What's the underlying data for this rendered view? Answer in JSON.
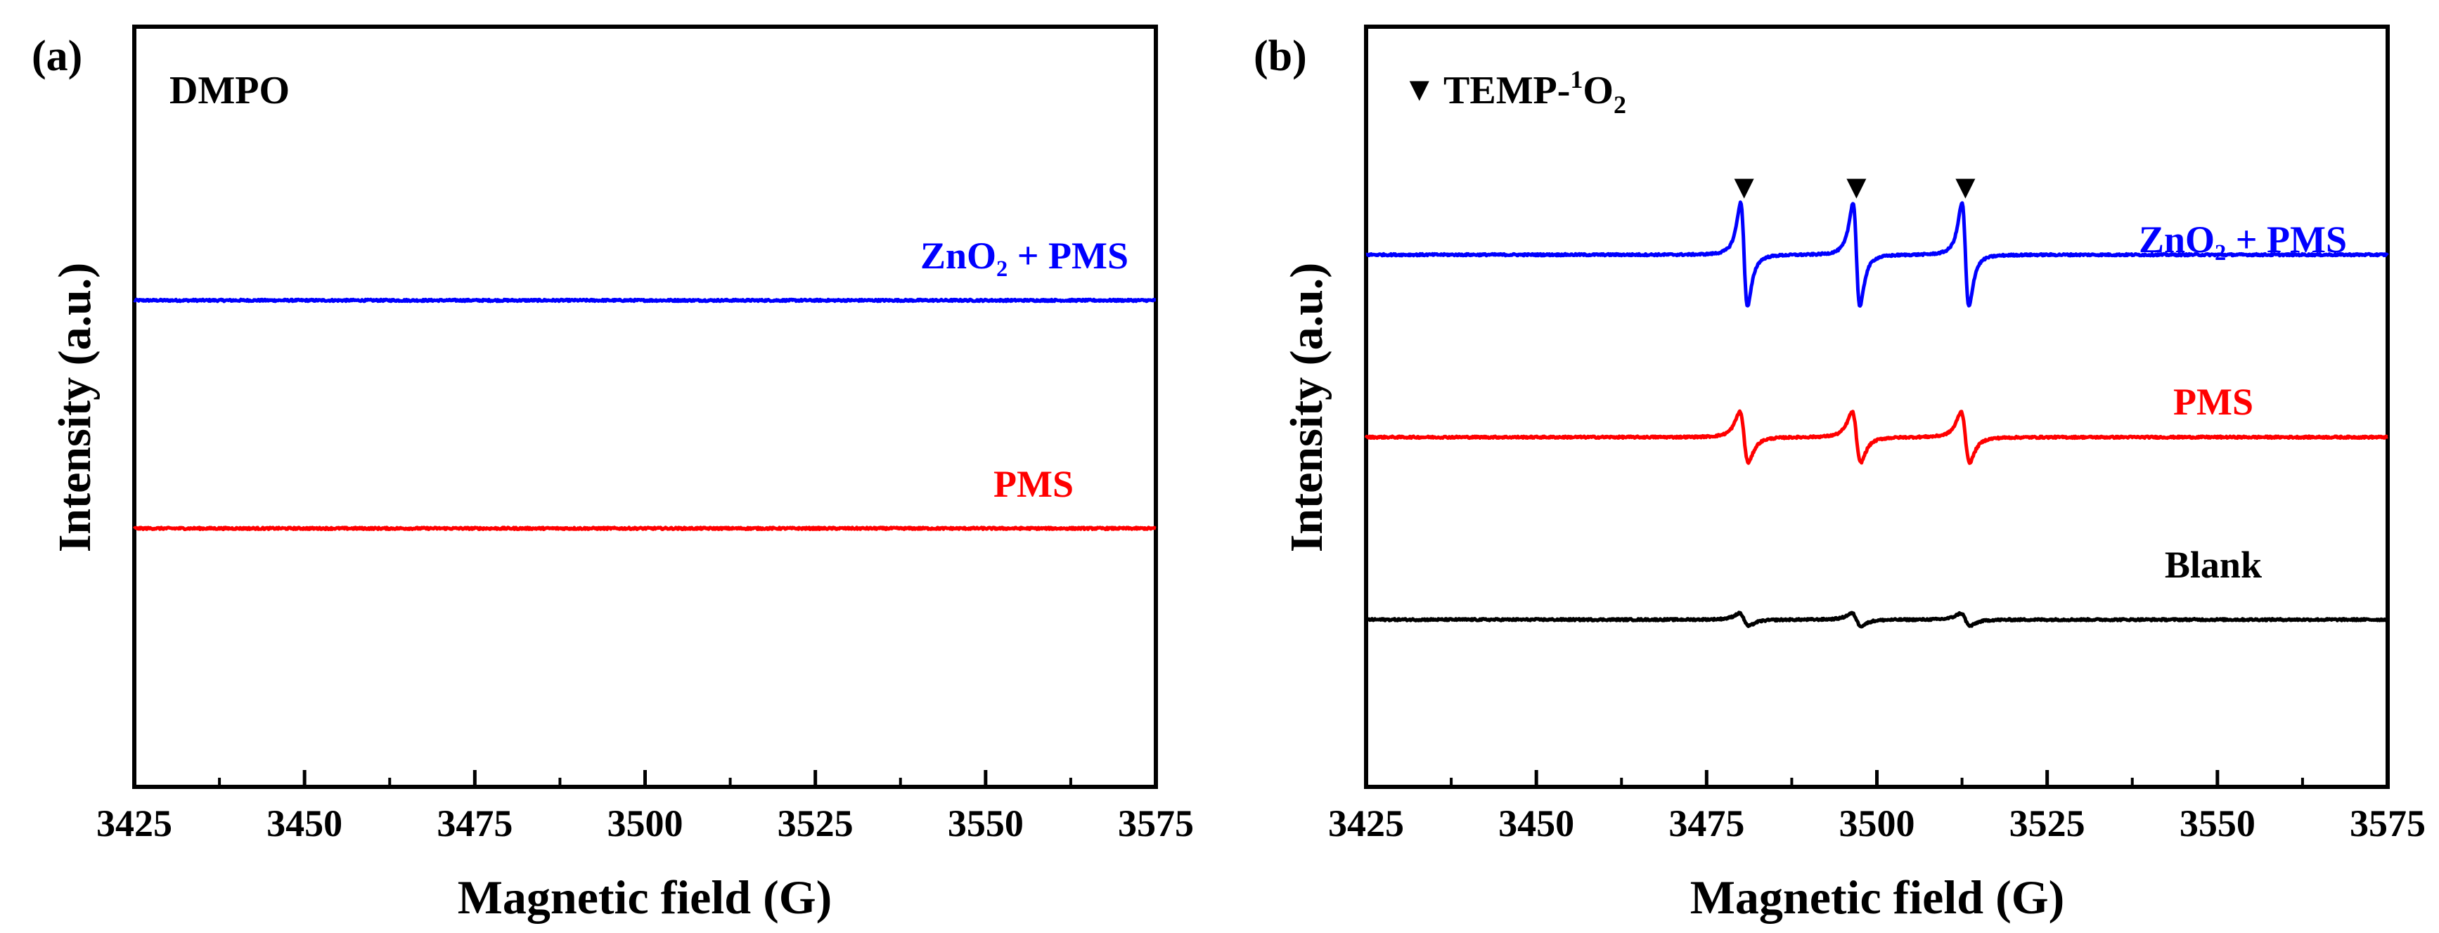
{
  "chart_data": [
    {
      "type": "line",
      "panel_label": "(a)",
      "annotation": "DMPO",
      "xlabel": "Magnetic field (G)",
      "ylabel": "Intensity (a.u.)",
      "xlim": [
        3425,
        3575
      ],
      "x_ticks": [
        "3425",
        "3450",
        "3475",
        "3500",
        "3525",
        "3550",
        "3575"
      ],
      "x_tick_values": [
        3425,
        3450,
        3475,
        3500,
        3525,
        3550,
        3575
      ],
      "ylim": [
        0,
        100
      ],
      "grid": false,
      "series": [
        {
          "name": "ZnO₂ + PMS",
          "color": "#0000ff",
          "baseline": 64,
          "signal": "flat"
        },
        {
          "name": "PMS",
          "color": "#ff0000",
          "baseline": 34,
          "signal": "flat"
        }
      ]
    },
    {
      "type": "line",
      "panel_label": "(b)",
      "legend_marker": "▼",
      "annotation_main": "TEMP-",
      "annotation_sup": "1",
      "annotation_o": "O",
      "annotation_sub": "2",
      "peak_marker": "▼",
      "xlabel": "Magnetic field (G)",
      "ylabel": "Intensity (a.u.)",
      "xlim": [
        3425,
        3575
      ],
      "x_ticks": [
        "3425",
        "3450",
        "3475",
        "3500",
        "3525",
        "3550",
        "3575"
      ],
      "x_tick_values": [
        3425,
        3450,
        3475,
        3500,
        3525,
        3550,
        3575
      ],
      "ylim": [
        0,
        100
      ],
      "grid": false,
      "peak_centers": [
        3480.5,
        3497,
        3513
      ],
      "series": [
        {
          "name": "ZnO₂ + PMS",
          "color": "#0000ff",
          "baseline": 70,
          "amplitude": 9,
          "linewidth_g": 0.9
        },
        {
          "name": "PMS",
          "color": "#ff0000",
          "baseline": 46,
          "amplitude": 4.4,
          "linewidth_g": 1.1
        },
        {
          "name": "Blank",
          "color": "#000000",
          "baseline": 22,
          "amplitude": 1.1,
          "linewidth_g": 1.2
        }
      ]
    }
  ]
}
